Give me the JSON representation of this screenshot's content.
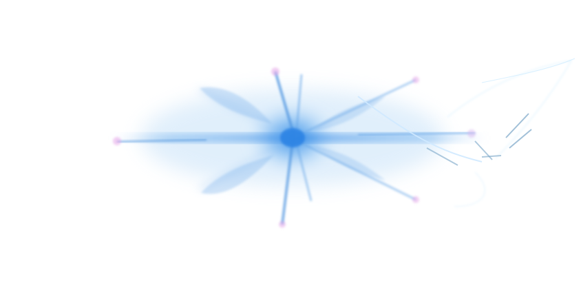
{
  "image": {
    "subject": "ice-crystal-burst",
    "colors": {
      "background": "#ffffff",
      "core": "#2e86e6",
      "glow": "#9cc8f5",
      "crystal": "#5aa0e8",
      "accent_pink": "#e6a6e8",
      "trail": "#bfe6ff"
    }
  }
}
